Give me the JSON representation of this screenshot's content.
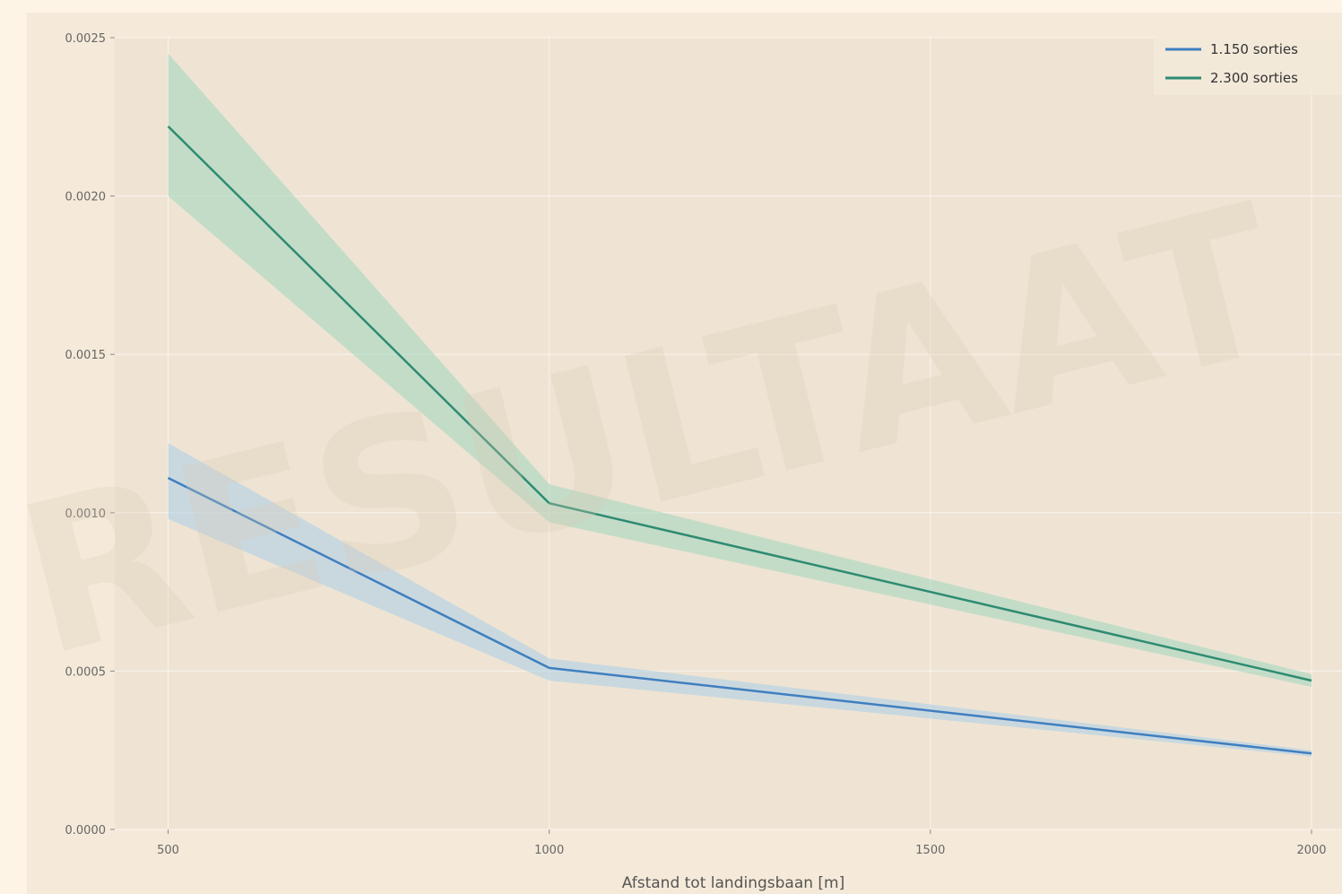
{
  "chart_data": {
    "type": "line",
    "title": "",
    "xlabel": "Afstand tot landingsbaan [m]",
    "ylabel": "",
    "x": [
      500,
      1000,
      1500,
      2000
    ],
    "x_ticks": [
      "500",
      "1000",
      "1500",
      "2000"
    ],
    "y_ticks": [
      "0.0000",
      "0.0005",
      "0.0010",
      "0.0015",
      "0.0020",
      "0.0025"
    ],
    "xlim": [
      430,
      2040
    ],
    "ylim": [
      0,
      0.0025
    ],
    "grid": true,
    "legend_position": "top-right",
    "watermark": "RESULTAAT",
    "series": [
      {
        "name": "1.150 sorties",
        "color": "#3f7fbf",
        "band_color": "#a9cdea",
        "x": [
          500,
          1000,
          2000
        ],
        "y": [
          0.00111,
          0.00051,
          0.00024
        ],
        "lower": [
          0.00098,
          0.00047,
          0.00023
        ],
        "upper": [
          0.00122,
          0.00054,
          0.00025
        ]
      },
      {
        "name": "2.300 sorties",
        "color": "#2e8b72",
        "band_color": "#9fd6bd",
        "x": [
          500,
          1000,
          2000
        ],
        "y": [
          0.00222,
          0.00103,
          0.00047
        ],
        "lower": [
          0.002,
          0.00097,
          0.00045
        ],
        "upper": [
          0.00245,
          0.00109,
          0.00049
        ]
      }
    ]
  }
}
